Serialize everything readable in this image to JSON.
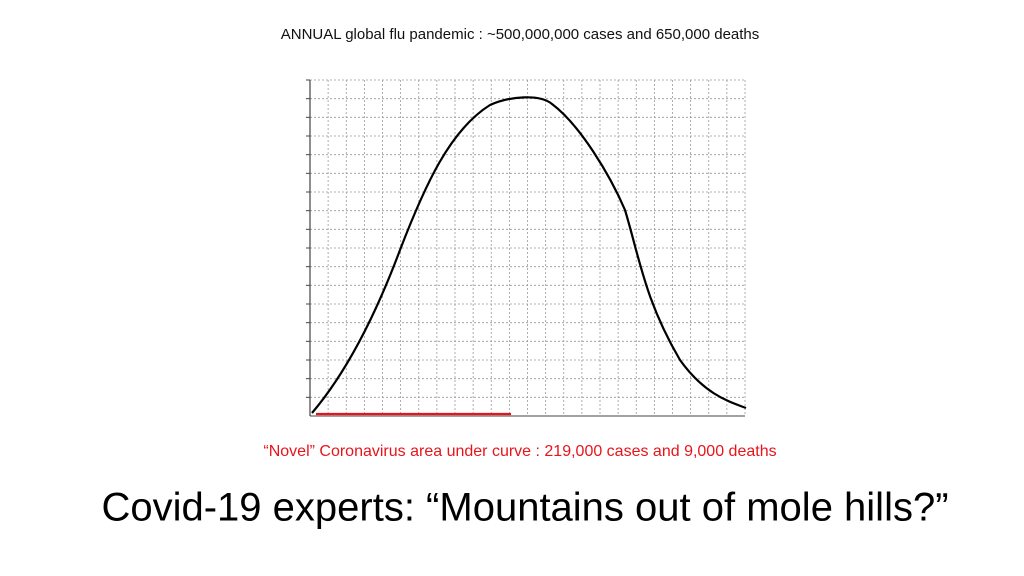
{
  "header": {
    "title": "ANNUAL global flu pandemic : ~500,000,000 cases and 650,000 deaths"
  },
  "annotation": {
    "text": "“Novel” Coronavirus area under curve : 219,000 cases and 9,000 deaths"
  },
  "headline": {
    "text": "Covid-19 experts: “Mountains out of mole hills?”"
  }
}
